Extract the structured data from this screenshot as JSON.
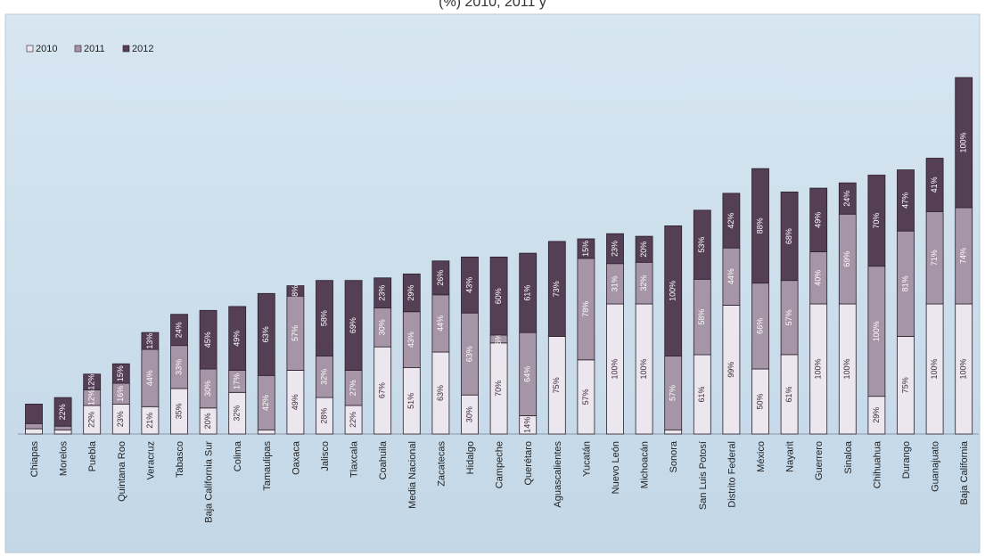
{
  "chart_data": {
    "type": "bar",
    "stacked": true,
    "title": "(%) 2010, 2011 y",
    "categories": [
      "Chiapas",
      "Morelos",
      "Puebla",
      "Quintana Roo",
      "Veracruz",
      "Tabasco",
      "Baja California Sur",
      "Colima",
      "Tamaulipas",
      "Oaxaca",
      "Jalisco",
      "Tlaxcala",
      "Coahuila",
      "Media Nacional",
      "Zacatecas",
      "Hidalgo",
      "Campeche",
      "Querétaro",
      "Aguascalientes",
      "Yucatán",
      "Nuevo León",
      "Michoacán",
      "Sonora",
      "San Luis Potosí",
      "Distrito Federal",
      "México",
      "Nayarit",
      "Guerrero",
      "Sinaloa",
      "Chihuahua",
      "Durango",
      "Guanajuato",
      "Baja California"
    ],
    "series": [
      {
        "name": "2010",
        "values": [
          4,
          3,
          22,
          23,
          21,
          35,
          20,
          32,
          3,
          49,
          28,
          22,
          67,
          51,
          63,
          30,
          70,
          14,
          75,
          57,
          100,
          100,
          3,
          61,
          99,
          50,
          61,
          100,
          100,
          29,
          75,
          100,
          100
        ]
      },
      {
        "name": "2011",
        "values": [
          4,
          3,
          12,
          16,
          44,
          33,
          30,
          17,
          42,
          57,
          32,
          27,
          30,
          43,
          44,
          63,
          6,
          64,
          0,
          78,
          31,
          32,
          57,
          58,
          44,
          66,
          57,
          40,
          69,
          100,
          81,
          71,
          74
        ]
      },
      {
        "name": "2012",
        "values": [
          15,
          22,
          12,
          15,
          13,
          24,
          45,
          49,
          63,
          8,
          58,
          69,
          23,
          29,
          26,
          43,
          60,
          61,
          73,
          15,
          23,
          20,
          100,
          53,
          42,
          88,
          68,
          49,
          24,
          70,
          47,
          41,
          100
        ]
      }
    ],
    "value_labels": [
      [
        "4%",
        "4%",
        ""
      ],
      [
        "3%",
        "",
        "22%"
      ],
      [
        "22%",
        "12%",
        "12%"
      ],
      [
        "23%",
        "16%",
        "15%"
      ],
      [
        "21%",
        "44%",
        "13%"
      ],
      [
        "35%",
        "33%",
        "24%"
      ],
      [
        "20%",
        "30%",
        "45%"
      ],
      [
        "32%",
        "17%",
        "49%"
      ],
      [
        "3%",
        "42%",
        "63%"
      ],
      [
        "49%",
        "57%",
        "8%"
      ],
      [
        "28%",
        "32%",
        "58%"
      ],
      [
        "22%",
        "27%",
        "69%"
      ],
      [
        "67%",
        "30%",
        "23%"
      ],
      [
        "51%",
        "43%",
        "29%"
      ],
      [
        "63%",
        "44%",
        "26%"
      ],
      [
        "30%",
        "63%",
        "43%"
      ],
      [
        "70%",
        "6%",
        "60%"
      ],
      [
        "14%",
        "64%",
        "61%"
      ],
      [
        "75%",
        "0%",
        "73%"
      ],
      [
        "57%",
        "78%",
        "15%"
      ],
      [
        "100%",
        "31%",
        "23%"
      ],
      [
        "100%",
        "32%",
        "20%"
      ],
      [
        "3%",
        "57%",
        "100%"
      ],
      [
        "61%",
        "58%",
        "53%"
      ],
      [
        "99%",
        "44%",
        "42%"
      ],
      [
        "50%",
        "66%",
        "88%"
      ],
      [
        "61%",
        "57%",
        "68%"
      ],
      [
        "100%",
        "40%",
        "49%"
      ],
      [
        "100%",
        "69%",
        "24%"
      ],
      [
        "29%",
        "100%",
        "70%"
      ],
      [
        "75%",
        "81%",
        "47%"
      ],
      [
        "100%",
        "71%",
        "41%"
      ],
      [
        "100%",
        "74%",
        "100%"
      ]
    ],
    "legend_position": "top-left",
    "grid": false,
    "colors": {
      "2010": "#ece6ee",
      "2011": "#a595a6",
      "2012": "#553f55",
      "plot_bg": "#cfe1ee",
      "outline": "#2a1f2a"
    }
  }
}
